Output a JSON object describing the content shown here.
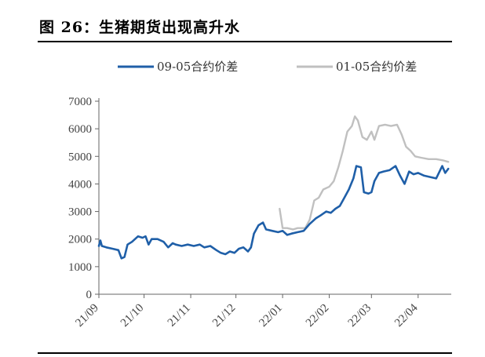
{
  "figure": {
    "title": "图 26：生猪期货出现高升水"
  },
  "chart_data": {
    "type": "line",
    "title": "",
    "xlabel": "",
    "ylabel": "",
    "ylim": [
      0,
      7000
    ],
    "yticks": [
      0,
      1000,
      2000,
      3000,
      4000,
      5000,
      6000,
      7000
    ],
    "xlim": [
      "2021-09-01",
      "2022-04-23"
    ],
    "xticks": [
      {
        "date": "2021-09-01",
        "label": "21/09"
      },
      {
        "date": "2021-10-01",
        "label": "21/10"
      },
      {
        "date": "2021-11-01",
        "label": "21/11"
      },
      {
        "date": "2021-12-01",
        "label": "21/12"
      },
      {
        "date": "2022-01-01",
        "label": "22/01"
      },
      {
        "date": "2022-02-01",
        "label": "22/02"
      },
      {
        "date": "2022-03-01",
        "label": "22/03"
      },
      {
        "date": "2022-04-01",
        "label": "22/04"
      }
    ],
    "grid": false,
    "legend_position": "top",
    "series": [
      {
        "name": "09-05合约价差",
        "color": "#1f5fa8",
        "points": [
          [
            "2021-09-01",
            1750
          ],
          [
            "2021-09-02",
            1950
          ],
          [
            "2021-09-03",
            1750
          ],
          [
            "2021-09-06",
            1700
          ],
          [
            "2021-09-10",
            1650
          ],
          [
            "2021-09-14",
            1600
          ],
          [
            "2021-09-16",
            1300
          ],
          [
            "2021-09-18",
            1350
          ],
          [
            "2021-09-20",
            1800
          ],
          [
            "2021-09-23",
            1900
          ],
          [
            "2021-09-27",
            2100
          ],
          [
            "2021-09-30",
            2050
          ],
          [
            "2021-10-02",
            2100
          ],
          [
            "2021-10-04",
            1800
          ],
          [
            "2021-10-06",
            2000
          ],
          [
            "2021-10-10",
            2000
          ],
          [
            "2021-10-14",
            1900
          ],
          [
            "2021-10-17",
            1700
          ],
          [
            "2021-10-20",
            1850
          ],
          [
            "2021-10-22",
            1800
          ],
          [
            "2021-10-26",
            1750
          ],
          [
            "2021-10-30",
            1800
          ],
          [
            "2021-11-03",
            1750
          ],
          [
            "2021-11-07",
            1800
          ],
          [
            "2021-11-10",
            1700
          ],
          [
            "2021-11-14",
            1750
          ],
          [
            "2021-11-18",
            1600
          ],
          [
            "2021-11-21",
            1500
          ],
          [
            "2021-11-24",
            1450
          ],
          [
            "2021-11-27",
            1550
          ],
          [
            "2021-11-30",
            1500
          ],
          [
            "2021-12-03",
            1650
          ],
          [
            "2021-12-06",
            1700
          ],
          [
            "2021-12-09",
            1550
          ],
          [
            "2021-12-11",
            1700
          ],
          [
            "2021-12-13",
            2200
          ],
          [
            "2021-12-16",
            2500
          ],
          [
            "2021-12-19",
            2600
          ],
          [
            "2021-12-21",
            2350
          ],
          [
            "2021-12-25",
            2300
          ],
          [
            "2021-12-29",
            2250
          ],
          [
            "2022-01-01",
            2300
          ],
          [
            "2022-01-04",
            2150
          ],
          [
            "2022-01-07",
            2200
          ],
          [
            "2022-01-11",
            2250
          ],
          [
            "2022-01-15",
            2300
          ],
          [
            "2022-01-19",
            2550
          ],
          [
            "2022-01-23",
            2750
          ],
          [
            "2022-01-26",
            2850
          ],
          [
            "2022-01-30",
            3000
          ],
          [
            "2022-02-02",
            2950
          ],
          [
            "2022-02-05",
            3100
          ],
          [
            "2022-02-08",
            3200
          ],
          [
            "2022-02-11",
            3500
          ],
          [
            "2022-02-14",
            3800
          ],
          [
            "2022-02-17",
            4200
          ],
          [
            "2022-02-19",
            4650
          ],
          [
            "2022-02-22",
            4600
          ],
          [
            "2022-02-24",
            3700
          ],
          [
            "2022-02-27",
            3650
          ],
          [
            "2022-03-01",
            3700
          ],
          [
            "2022-03-03",
            4100
          ],
          [
            "2022-03-06",
            4400
          ],
          [
            "2022-03-09",
            4450
          ],
          [
            "2022-03-13",
            4500
          ],
          [
            "2022-03-17",
            4650
          ],
          [
            "2022-03-20",
            4300
          ],
          [
            "2022-03-23",
            4000
          ],
          [
            "2022-03-26",
            4450
          ],
          [
            "2022-03-29",
            4350
          ],
          [
            "2022-04-01",
            4400
          ],
          [
            "2022-04-05",
            4300
          ],
          [
            "2022-04-09",
            4250
          ],
          [
            "2022-04-13",
            4200
          ],
          [
            "2022-04-17",
            4650
          ],
          [
            "2022-04-19",
            4400
          ],
          [
            "2022-04-21",
            4550
          ]
        ]
      },
      {
        "name": "01-05合约价差",
        "color": "#c0c0c0",
        "points": [
          [
            "2021-12-30",
            3100
          ],
          [
            "2022-01-01",
            2400
          ],
          [
            "2022-01-04",
            2400
          ],
          [
            "2022-01-08",
            2350
          ],
          [
            "2022-01-11",
            2400
          ],
          [
            "2022-01-16",
            2400
          ],
          [
            "2022-01-19",
            2700
          ],
          [
            "2022-01-22",
            3400
          ],
          [
            "2022-01-25",
            3500
          ],
          [
            "2022-01-28",
            3800
          ],
          [
            "2022-02-01",
            3900
          ],
          [
            "2022-02-04",
            4100
          ],
          [
            "2022-02-07",
            4600
          ],
          [
            "2022-02-10",
            5200
          ],
          [
            "2022-02-13",
            5900
          ],
          [
            "2022-02-16",
            6100
          ],
          [
            "2022-02-18",
            6450
          ],
          [
            "2022-02-20",
            6300
          ],
          [
            "2022-02-23",
            5700
          ],
          [
            "2022-02-26",
            5600
          ],
          [
            "2022-03-01",
            5900
          ],
          [
            "2022-03-03",
            5600
          ],
          [
            "2022-03-06",
            6100
          ],
          [
            "2022-03-10",
            6150
          ],
          [
            "2022-03-14",
            6100
          ],
          [
            "2022-03-18",
            6150
          ],
          [
            "2022-03-21",
            5800
          ],
          [
            "2022-03-24",
            5350
          ],
          [
            "2022-03-27",
            5200
          ],
          [
            "2022-03-30",
            5000
          ],
          [
            "2022-04-03",
            4950
          ],
          [
            "2022-04-08",
            4900
          ],
          [
            "2022-04-13",
            4900
          ],
          [
            "2022-04-18",
            4850
          ],
          [
            "2022-04-21",
            4800
          ]
        ]
      }
    ]
  }
}
